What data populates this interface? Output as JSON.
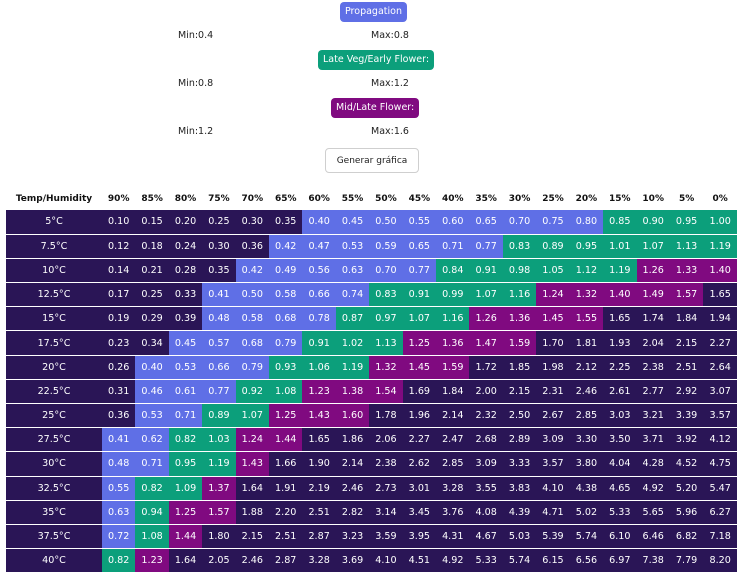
{
  "controls": {
    "propagation": {
      "label": "Propagation",
      "min": "Min:0.4",
      "max": "Max:0.8"
    },
    "late_veg": {
      "label": "Late Veg/Early Flower:",
      "min": "Min:0.8",
      "max": "Max:1.2"
    },
    "mid_late": {
      "label": "Mid/Late Flower:",
      "min": "Min:1.2",
      "max": "Max:1.6"
    },
    "generate_label": "Generar gráfica"
  },
  "colors": {
    "propagation": "#5f6fe6",
    "late_veg": "#0c9f7b",
    "mid_late": "#800a80",
    "background": "#2a1556"
  },
  "table": {
    "corner": "Temp/Humidity",
    "humidity": [
      "90%",
      "85%",
      "80%",
      "75%",
      "70%",
      "65%",
      "60%",
      "55%",
      "50%",
      "45%",
      "40%",
      "35%",
      "30%",
      "25%",
      "20%",
      "15%",
      "10%",
      "5%",
      "0%"
    ],
    "rows": [
      {
        "t": "5°C",
        "v": [
          "0.10",
          "0.15",
          "0.20",
          "0.25",
          "0.30",
          "0.35",
          "0.40",
          "0.45",
          "0.50",
          "0.55",
          "0.60",
          "0.65",
          "0.70",
          "0.75",
          "0.80",
          "0.85",
          "0.90",
          "0.95",
          "1.00"
        ]
      },
      {
        "t": "7.5°C",
        "v": [
          "0.12",
          "0.18",
          "0.24",
          "0.30",
          "0.36",
          "0.42",
          "0.47",
          "0.53",
          "0.59",
          "0.65",
          "0.71",
          "0.77",
          "0.83",
          "0.89",
          "0.95",
          "1.01",
          "1.07",
          "1.13",
          "1.19"
        ]
      },
      {
        "t": "10°C",
        "v": [
          "0.14",
          "0.21",
          "0.28",
          "0.35",
          "0.42",
          "0.49",
          "0.56",
          "0.63",
          "0.70",
          "0.77",
          "0.84",
          "0.91",
          "0.98",
          "1.05",
          "1.12",
          "1.19",
          "1.26",
          "1.33",
          "1.40"
        ]
      },
      {
        "t": "12.5°C",
        "v": [
          "0.17",
          "0.25",
          "0.33",
          "0.41",
          "0.50",
          "0.58",
          "0.66",
          "0.74",
          "0.83",
          "0.91",
          "0.99",
          "1.07",
          "1.16",
          "1.24",
          "1.32",
          "1.40",
          "1.49",
          "1.57",
          "1.65"
        ]
      },
      {
        "t": "15°C",
        "v": [
          "0.19",
          "0.29",
          "0.39",
          "0.48",
          "0.58",
          "0.68",
          "0.78",
          "0.87",
          "0.97",
          "1.07",
          "1.16",
          "1.26",
          "1.36",
          "1.45",
          "1.55",
          "1.65",
          "1.74",
          "1.84",
          "1.94"
        ]
      },
      {
        "t": "17.5°C",
        "v": [
          "0.23",
          "0.34",
          "0.45",
          "0.57",
          "0.68",
          "0.79",
          "0.91",
          "1.02",
          "1.13",
          "1.25",
          "1.36",
          "1.47",
          "1.59",
          "1.70",
          "1.81",
          "1.93",
          "2.04",
          "2.15",
          "2.27"
        ]
      },
      {
        "t": "20°C",
        "v": [
          "0.26",
          "0.40",
          "0.53",
          "0.66",
          "0.79",
          "0.93",
          "1.06",
          "1.19",
          "1.32",
          "1.45",
          "1.59",
          "1.72",
          "1.85",
          "1.98",
          "2.12",
          "2.25",
          "2.38",
          "2.51",
          "2.64"
        ]
      },
      {
        "t": "22.5°C",
        "v": [
          "0.31",
          "0.46",
          "0.61",
          "0.77",
          "0.92",
          "1.08",
          "1.23",
          "1.38",
          "1.54",
          "1.69",
          "1.84",
          "2.00",
          "2.15",
          "2.31",
          "2.46",
          "2.61",
          "2.77",
          "2.92",
          "3.07"
        ]
      },
      {
        "t": "25°C",
        "v": [
          "0.36",
          "0.53",
          "0.71",
          "0.89",
          "1.07",
          "1.25",
          "1.43",
          "1.60",
          "1.78",
          "1.96",
          "2.14",
          "2.32",
          "2.50",
          "2.67",
          "2.85",
          "3.03",
          "3.21",
          "3.39",
          "3.57"
        ]
      },
      {
        "t": "27.5°C",
        "v": [
          "0.41",
          "0.62",
          "0.82",
          "1.03",
          "1.24",
          "1.44",
          "1.65",
          "1.86",
          "2.06",
          "2.27",
          "2.47",
          "2.68",
          "2.89",
          "3.09",
          "3.30",
          "3.50",
          "3.71",
          "3.92",
          "4.12"
        ]
      },
      {
        "t": "30°C",
        "v": [
          "0.48",
          "0.71",
          "0.95",
          "1.19",
          "1.43",
          "1.66",
          "1.90",
          "2.14",
          "2.38",
          "2.62",
          "2.85",
          "3.09",
          "3.33",
          "3.57",
          "3.80",
          "4.04",
          "4.28",
          "4.52",
          "4.75"
        ]
      },
      {
        "t": "32.5°C",
        "v": [
          "0.55",
          "0.82",
          "1.09",
          "1.37",
          "1.64",
          "1.91",
          "2.19",
          "2.46",
          "2.73",
          "3.01",
          "3.28",
          "3.55",
          "3.83",
          "4.10",
          "4.38",
          "4.65",
          "4.92",
          "5.20",
          "5.47"
        ]
      },
      {
        "t": "35°C",
        "v": [
          "0.63",
          "0.94",
          "1.25",
          "1.57",
          "1.88",
          "2.20",
          "2.51",
          "2.82",
          "3.14",
          "3.45",
          "3.76",
          "4.08",
          "4.39",
          "4.71",
          "5.02",
          "5.33",
          "5.65",
          "5.96",
          "6.27"
        ]
      },
      {
        "t": "37.5°C",
        "v": [
          "0.72",
          "1.08",
          "1.44",
          "1.80",
          "2.15",
          "2.51",
          "2.87",
          "3.23",
          "3.59",
          "3.95",
          "4.31",
          "4.67",
          "5.03",
          "5.39",
          "5.74",
          "6.10",
          "6.46",
          "6.82",
          "7.18"
        ]
      },
      {
        "t": "40°C",
        "v": [
          "0.82",
          "1.23",
          "1.64",
          "2.05",
          "2.46",
          "2.87",
          "3.28",
          "3.69",
          "4.10",
          "4.51",
          "4.92",
          "5.33",
          "5.74",
          "6.15",
          "6.56",
          "6.97",
          "7.38",
          "7.79",
          "8.20"
        ]
      }
    ]
  }
}
